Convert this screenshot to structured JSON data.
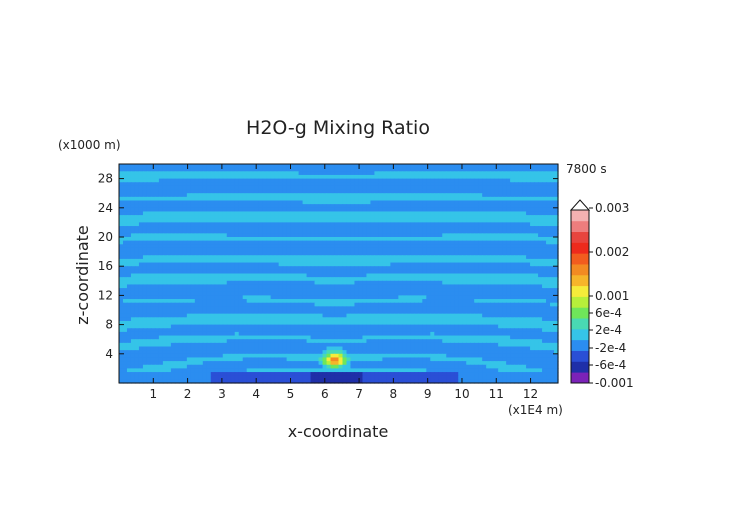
{
  "chart_data": {
    "type": "heatmap",
    "title": "H2O-g Mixing Ratio",
    "xlabel": "x-coordinate",
    "ylabel": "z-coordinate",
    "x_unit": "(x1E4 m)",
    "y_unit": "(x1000 m)",
    "time_label": "7800 s",
    "xlim": [
      0,
      12.8
    ],
    "ylim": [
      0,
      30
    ],
    "x_ticks": [
      1,
      2,
      3,
      4,
      5,
      6,
      7,
      8,
      9,
      10,
      11,
      12
    ],
    "y_ticks": [
      4,
      8,
      12,
      16,
      20,
      24,
      28
    ],
    "colorbar": {
      "colors": [
        "#7b22b8",
        "#1f2fa8",
        "#2a4fd6",
        "#2b8df0",
        "#35c4e8",
        "#49d9b3",
        "#6fe65a",
        "#b7ef3a",
        "#f5ec3a",
        "#f6b52a",
        "#f38a22",
        "#f25c1e",
        "#ee2a1c",
        "#e8443e",
        "#ee7d7d",
        "#f4b1b1"
      ],
      "tick_labels": [
        "-0.001",
        "-6e-4",
        "-2e-4",
        "2e-4",
        "6e-4",
        "0.001",
        "0.002",
        "0.003"
      ],
      "tick_values": [
        -0.001,
        -0.0006,
        -0.0002,
        0.0002,
        0.0006,
        0.001,
        0.002,
        0.003
      ],
      "range": [
        -0.0012,
        0.0034
      ]
    },
    "features": {
      "background_value": -0.0001,
      "band_value": 0.0001,
      "peak": {
        "x": 6.3,
        "z": 3.2,
        "value": 0.0018
      },
      "surface_layer_value": -0.0007
    }
  }
}
